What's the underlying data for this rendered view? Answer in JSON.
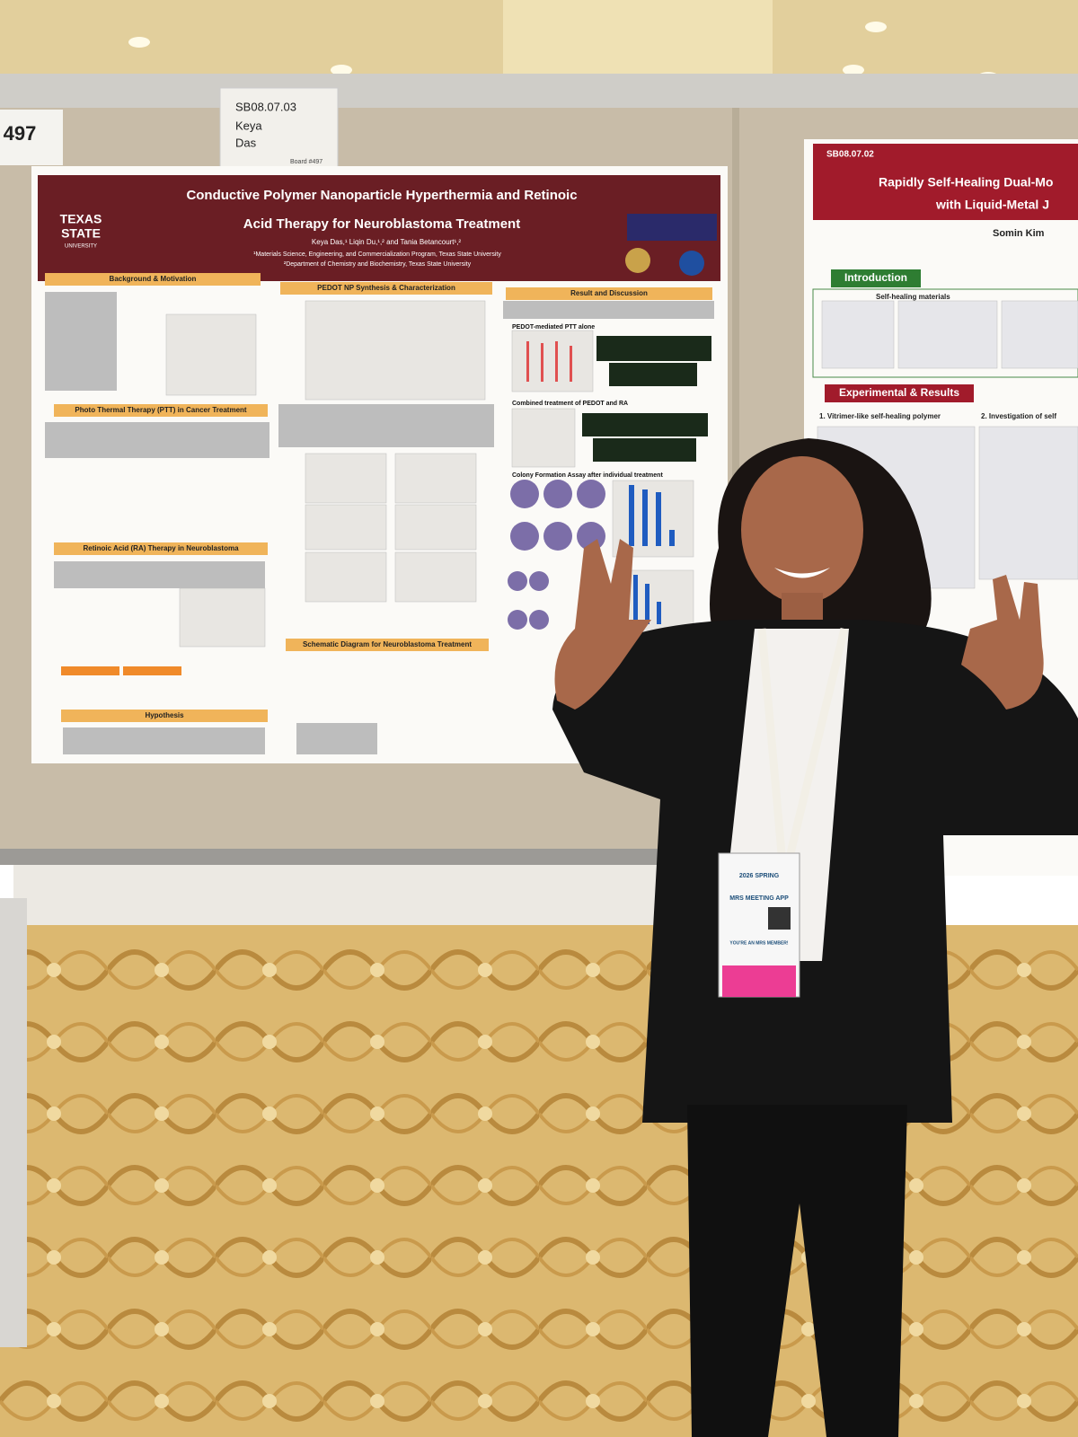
{
  "board": {
    "number": "497",
    "card": [
      "SB08.07.03",
      "Keya",
      "Das",
      "Board #497"
    ]
  },
  "poster_left": {
    "logo": [
      "TEXAS",
      "STATE",
      "UNIVERSITY"
    ],
    "title_lines": [
      "Conductive Polymer Nanoparticle Hyperthermia and Retinoic",
      "Acid Therapy for Neuroblastoma Treatment"
    ],
    "authors": "Keya Das,¹ Liqin Du,¹,² and Tania Betancourt¹,²",
    "affiliations": [
      "¹Materials Science, Engineering, and Commercialization Program, Texas State University",
      "²Department of Chemistry and Biochemistry, Texas State University"
    ],
    "sections": [
      "Background & Motivation",
      "Photo Thermal Therapy (PTT) in Cancer Treatment",
      "Retinoic Acid (RA) Therapy in Neuroblastoma",
      "Hypothesis",
      "PEDOT NP Synthesis & Characterization",
      "Schematic Diagram for Neuroblastoma Treatment",
      "Result and Discussion"
    ],
    "subsections": [
      "PEDOT-mediated PTT alone",
      "Combined treatment of PEDOT and RA",
      "Colony Formation Assay after individual treatment"
    ]
  },
  "poster_right": {
    "code": "SB08.07.02",
    "title_lines": [
      "Rapidly Self-Healing Dual-Mo",
      "with Liquid-Metal J"
    ],
    "author": "Somin Kim",
    "sections": [
      "Introduction",
      "Experimental & Results"
    ],
    "subsections": [
      "Self-healing materials",
      "1. Vitrimer-like self-healing polymer",
      "2. Investigation of self"
    ]
  },
  "badge": [
    "2026 SPRING",
    "MRS MEETING APP",
    "YOU'RE AN MRS MEMBER!"
  ]
}
